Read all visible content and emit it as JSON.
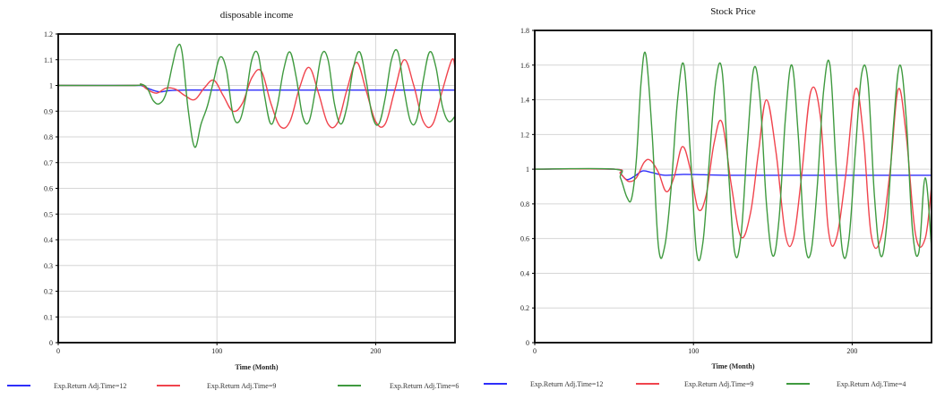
{
  "colors": {
    "series_1": "#2e2efa",
    "series_2": "#f0444d",
    "series_3": "#3f9a3f",
    "grid": "#d6d6d6",
    "frame": "#000000"
  },
  "chart_data": [
    {
      "type": "line",
      "title": "disposable income",
      "xlabel": "Time (Month)",
      "ylabel": "",
      "xlim": [
        0,
        250
      ],
      "ylim": [
        0,
        1.2
      ],
      "xticks": [
        0,
        100,
        200
      ],
      "yticks": [
        0,
        0.1,
        0.2,
        0.3,
        0.4,
        0.5,
        0.6,
        0.7,
        0.8,
        0.9,
        1,
        1.1,
        1.2
      ],
      "ytick_labels": [
        "0",
        "0.1",
        "0.2",
        "0.3",
        "0.4",
        "0.5",
        "0.6",
        "0.7",
        "0.8",
        "0.9",
        "1",
        "1.1",
        "1.2"
      ],
      "grid": true,
      "legend": "bottom",
      "series": [
        {
          "name": "Exp.Return Adj.Time=12",
          "x": [
            0,
            48,
            52,
            58,
            64,
            70,
            80,
            100,
            150,
            200,
            250
          ],
          "y": [
            1,
            1,
            1.0,
            0.985,
            0.975,
            0.98,
            0.982,
            0.982,
            0.982,
            0.982,
            0.982
          ]
        },
        {
          "name": "Exp.Return Adj.Time=9",
          "x": [
            0,
            48,
            52,
            56,
            62,
            68,
            74,
            80,
            86,
            92,
            98,
            104,
            110,
            116,
            122,
            128,
            134,
            140,
            146,
            152,
            158,
            164,
            170,
            176,
            182,
            188,
            194,
            200,
            206,
            212,
            218,
            224,
            230,
            236,
            242,
            248,
            250
          ],
          "y": [
            1,
            1,
            1.005,
            0.985,
            0.97,
            0.99,
            0.985,
            0.96,
            0.945,
            0.99,
            1.02,
            0.96,
            0.9,
            0.93,
            1.03,
            1.055,
            0.93,
            0.84,
            0.86,
            0.99,
            1.07,
            0.97,
            0.85,
            0.855,
            0.985,
            1.09,
            0.98,
            0.86,
            0.85,
            0.98,
            1.1,
            1.0,
            0.86,
            0.85,
            0.98,
            1.1,
            1.07
          ]
        },
        {
          "name": "Exp.Return Adj.Time=6",
          "x": [
            0,
            48,
            52,
            56,
            60,
            64,
            68,
            72,
            75,
            78,
            82,
            86,
            90,
            94,
            98,
            102,
            106,
            110,
            114,
            118,
            122,
            126,
            130,
            134,
            138,
            142,
            146,
            150,
            154,
            158,
            162,
            166,
            170,
            174,
            178,
            182,
            186,
            190,
            194,
            198,
            202,
            206,
            210,
            214,
            218,
            222,
            226,
            230,
            234,
            238,
            242,
            246,
            250
          ],
          "y": [
            1,
            1,
            1.005,
            0.99,
            0.94,
            0.93,
            0.97,
            1.08,
            1.15,
            1.13,
            0.9,
            0.76,
            0.85,
            0.92,
            1.02,
            1.11,
            1.06,
            0.89,
            0.86,
            0.95,
            1.1,
            1.12,
            0.96,
            0.85,
            0.92,
            1.06,
            1.13,
            1.03,
            0.88,
            0.86,
            0.98,
            1.12,
            1.1,
            0.93,
            0.85,
            0.92,
            1.07,
            1.13,
            1.02,
            0.88,
            0.85,
            0.95,
            1.1,
            1.13,
            0.98,
            0.86,
            0.87,
            1.02,
            1.13,
            1.07,
            0.92,
            0.86,
            0.88
          ]
        }
      ]
    },
    {
      "type": "line",
      "title": "Stock Price",
      "xlabel": "Time (Month)",
      "ylabel": "",
      "xlim": [
        0,
        250
      ],
      "ylim": [
        0,
        1.8
      ],
      "xticks": [
        0,
        100,
        200
      ],
      "yticks": [
        0,
        0.2,
        0.4,
        0.6,
        0.8,
        1,
        1.2,
        1.4,
        1.6,
        1.8
      ],
      "ytick_labels": [
        "0",
        "0.2",
        "0.4",
        "0.6",
        "0.8",
        "1",
        "1.2",
        "1.4",
        "1.6",
        "1.8"
      ],
      "grid": true,
      "legend": "bottom",
      "series": [
        {
          "name": "Exp.Return Adj.Time=12",
          "x": [
            0,
            50,
            54,
            58,
            63,
            68,
            74,
            82,
            95,
            120,
            150,
            200,
            250
          ],
          "y": [
            1,
            1,
            0.975,
            0.94,
            0.96,
            0.99,
            0.98,
            0.965,
            0.97,
            0.965,
            0.965,
            0.965,
            0.965
          ]
        },
        {
          "name": "Exp.Return Adj.Time=9",
          "x": [
            0,
            50,
            54,
            59,
            64,
            69,
            73,
            78,
            83,
            88,
            93,
            98,
            103,
            108,
            113,
            118,
            124,
            130,
            136,
            141,
            146,
            152,
            158,
            163,
            168,
            174,
            180,
            185,
            190,
            196,
            202,
            207,
            212,
            218,
            224,
            229,
            234,
            240,
            246,
            250
          ],
          "y": [
            1,
            1,
            0.975,
            0.93,
            0.95,
            1.04,
            1.05,
            0.98,
            0.87,
            0.96,
            1.13,
            1.0,
            0.77,
            0.85,
            1.15,
            1.27,
            0.9,
            0.61,
            0.75,
            1.1,
            1.4,
            1.1,
            0.62,
            0.6,
            0.95,
            1.45,
            1.3,
            0.65,
            0.6,
            0.97,
            1.46,
            1.2,
            0.62,
            0.6,
            1.0,
            1.46,
            1.2,
            0.62,
            0.6,
            0.9
          ]
        },
        {
          "name": "Exp.Return Adj.Time=4",
          "x": [
            0,
            50,
            54,
            58,
            61,
            64,
            67,
            70,
            74,
            78,
            82,
            86,
            90,
            94,
            98,
            102,
            106,
            110,
            114,
            118,
            122,
            126,
            130,
            134,
            138,
            142,
            146,
            150,
            154,
            158,
            162,
            166,
            170,
            174,
            178,
            182,
            186,
            190,
            194,
            198,
            202,
            206,
            210,
            214,
            218,
            222,
            226,
            230,
            234,
            238,
            242,
            246,
            250
          ],
          "y": [
            1,
            1,
            0.95,
            0.84,
            0.83,
            1.05,
            1.5,
            1.66,
            1.2,
            0.55,
            0.56,
            0.9,
            1.4,
            1.6,
            1.1,
            0.52,
            0.58,
            1.05,
            1.5,
            1.57,
            1.0,
            0.52,
            0.62,
            1.15,
            1.58,
            1.4,
            0.8,
            0.5,
            0.72,
            1.3,
            1.6,
            1.2,
            0.6,
            0.52,
            0.9,
            1.45,
            1.6,
            1.0,
            0.52,
            0.6,
            1.1,
            1.55,
            1.5,
            0.85,
            0.5,
            0.7,
            1.25,
            1.6,
            1.3,
            0.65,
            0.52,
            0.95,
            0.55
          ]
        }
      ]
    }
  ]
}
